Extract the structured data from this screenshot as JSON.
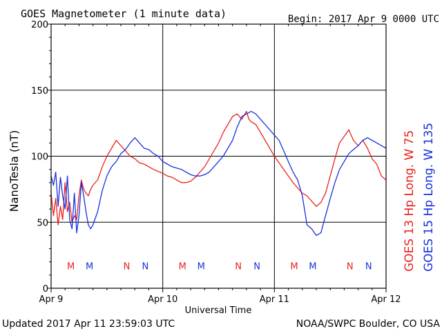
{
  "header": {
    "title": "GOES Magnetometer (1 minute data)",
    "begin": "Begin:  2017 Apr 9 0000 UTC"
  },
  "footer": {
    "updated": "Updated 2017 Apr 11 23:59:03 UTC",
    "source": "NOAA/SWPC Boulder, CO USA"
  },
  "colors": {
    "goes13": "#e8211c",
    "goes15": "#1530e0",
    "axis": "#000000",
    "grid": "#000000"
  },
  "chart_data": {
    "type": "line",
    "ylabel": "NanoTesla (nT)",
    "xlabel": "Universal Time",
    "ylim": [
      0,
      200
    ],
    "xlim": [
      0,
      72
    ],
    "x_unit": "hours since 2017 Apr 9 0000 UTC",
    "yticks": [
      0,
      50,
      100,
      150,
      200
    ],
    "xticks": [
      {
        "x": 0,
        "label": "Apr 9"
      },
      {
        "x": 24,
        "label": "Apr 10"
      },
      {
        "x": 48,
        "label": "Apr 11"
      },
      {
        "x": 72,
        "label": "Apr 12"
      }
    ],
    "grid": true,
    "series": [
      {
        "name": "GOES 13 Hp  Long. W 75",
        "color": "#e8211c",
        "points": [
          [
            0,
            72
          ],
          [
            0.5,
            55
          ],
          [
            1,
            68
          ],
          [
            1.5,
            48
          ],
          [
            2,
            62
          ],
          [
            2.5,
            52
          ],
          [
            3,
            80
          ],
          [
            3.5,
            58
          ],
          [
            4,
            65
          ],
          [
            4.5,
            50
          ],
          [
            5,
            55
          ],
          [
            5.5,
            52
          ],
          [
            6,
            70
          ],
          [
            6.5,
            82
          ],
          [
            7,
            75
          ],
          [
            7.5,
            72
          ],
          [
            8,
            70
          ],
          [
            8.5,
            75
          ],
          [
            9,
            78
          ],
          [
            10,
            82
          ],
          [
            11,
            92
          ],
          [
            12,
            100
          ],
          [
            13,
            106
          ],
          [
            14,
            112
          ],
          [
            15,
            108
          ],
          [
            16,
            104
          ],
          [
            17,
            100
          ],
          [
            18,
            98
          ],
          [
            19,
            95
          ],
          [
            20,
            94
          ],
          [
            21,
            92
          ],
          [
            22,
            90
          ],
          [
            24,
            87
          ],
          [
            25,
            85
          ],
          [
            26,
            84
          ],
          [
            27,
            82
          ],
          [
            28,
            80
          ],
          [
            29,
            80
          ],
          [
            30,
            81
          ],
          [
            31,
            84
          ],
          [
            32,
            88
          ],
          [
            33,
            92
          ],
          [
            34,
            98
          ],
          [
            35,
            104
          ],
          [
            36,
            110
          ],
          [
            37,
            118
          ],
          [
            38,
            124
          ],
          [
            39,
            130
          ],
          [
            40,
            132
          ],
          [
            41,
            128
          ],
          [
            42,
            134
          ],
          [
            42.5,
            128
          ],
          [
            43,
            126
          ],
          [
            44,
            124
          ],
          [
            45,
            118
          ],
          [
            46,
            112
          ],
          [
            47,
            106
          ],
          [
            48,
            100
          ],
          [
            49,
            95
          ],
          [
            50,
            90
          ],
          [
            51,
            85
          ],
          [
            52,
            80
          ],
          [
            53,
            76
          ],
          [
            54,
            72
          ],
          [
            55,
            70
          ],
          [
            56,
            66
          ],
          [
            57,
            62
          ],
          [
            58,
            65
          ],
          [
            59,
            72
          ],
          [
            60,
            85
          ],
          [
            61,
            98
          ],
          [
            62,
            110
          ],
          [
            63,
            115
          ],
          [
            64,
            120
          ],
          [
            65,
            112
          ],
          [
            66,
            108
          ],
          [
            67,
            112
          ],
          [
            68,
            106
          ],
          [
            69,
            98
          ],
          [
            70,
            94
          ],
          [
            71,
            85
          ],
          [
            72,
            82
          ]
        ]
      },
      {
        "name": "GOES 15 Hp  Long. W 135",
        "color": "#1530e0",
        "points": [
          [
            0,
            85
          ],
          [
            0.5,
            78
          ],
          [
            1,
            88
          ],
          [
            1.5,
            62
          ],
          [
            2,
            84
          ],
          [
            2.5,
            70
          ],
          [
            3,
            60
          ],
          [
            3.5,
            85
          ],
          [
            4,
            52
          ],
          [
            4.5,
            45
          ],
          [
            5,
            72
          ],
          [
            5.5,
            42
          ],
          [
            6,
            55
          ],
          [
            6.5,
            80
          ],
          [
            7,
            70
          ],
          [
            7.5,
            58
          ],
          [
            8,
            48
          ],
          [
            8.5,
            45
          ],
          [
            9,
            48
          ],
          [
            10,
            58
          ],
          [
            11,
            74
          ],
          [
            12,
            85
          ],
          [
            13,
            92
          ],
          [
            14,
            96
          ],
          [
            15,
            102
          ],
          [
            16,
            105
          ],
          [
            17,
            110
          ],
          [
            18,
            114
          ],
          [
            19,
            110
          ],
          [
            20,
            106
          ],
          [
            21,
            105
          ],
          [
            22,
            102
          ],
          [
            23,
            100
          ],
          [
            24,
            96
          ],
          [
            25,
            94
          ],
          [
            26,
            92
          ],
          [
            27,
            91
          ],
          [
            28,
            90
          ],
          [
            29,
            88
          ],
          [
            30,
            86
          ],
          [
            31,
            85
          ],
          [
            32,
            85
          ],
          [
            33,
            86
          ],
          [
            34,
            88
          ],
          [
            35,
            92
          ],
          [
            36,
            96
          ],
          [
            37,
            100
          ],
          [
            38,
            106
          ],
          [
            39,
            112
          ],
          [
            40,
            122
          ],
          [
            40.5,
            126
          ],
          [
            41,
            130
          ],
          [
            42,
            132
          ],
          [
            43,
            134
          ],
          [
            44,
            132
          ],
          [
            45,
            128
          ],
          [
            46,
            124
          ],
          [
            47,
            120
          ],
          [
            48,
            116
          ],
          [
            49,
            112
          ],
          [
            50,
            104
          ],
          [
            51,
            96
          ],
          [
            52,
            88
          ],
          [
            53,
            82
          ],
          [
            54,
            70
          ],
          [
            55,
            48
          ],
          [
            56,
            45
          ],
          [
            57,
            40
          ],
          [
            58,
            42
          ],
          [
            59,
            55
          ],
          [
            60,
            68
          ],
          [
            61,
            80
          ],
          [
            62,
            90
          ],
          [
            63,
            96
          ],
          [
            64,
            102
          ],
          [
            65,
            105
          ],
          [
            66,
            108
          ],
          [
            67,
            112
          ],
          [
            68,
            114
          ],
          [
            69,
            112
          ],
          [
            70,
            110
          ],
          [
            71,
            108
          ],
          [
            72,
            106
          ]
        ]
      }
    ],
    "markers": [
      {
        "label": "M",
        "series": 0,
        "x": 4.25
      },
      {
        "label": "M",
        "series": 1,
        "x": 8.25
      },
      {
        "label": "N",
        "series": 0,
        "x": 16.25
      },
      {
        "label": "N",
        "series": 1,
        "x": 20.25
      },
      {
        "label": "M",
        "series": 0,
        "x": 28.25
      },
      {
        "label": "M",
        "series": 1,
        "x": 32.25
      },
      {
        "label": "N",
        "series": 0,
        "x": 40.25
      },
      {
        "label": "N",
        "series": 1,
        "x": 44.25
      },
      {
        "label": "M",
        "series": 0,
        "x": 52.25
      },
      {
        "label": "M",
        "series": 1,
        "x": 56.25
      },
      {
        "label": "N",
        "series": 0,
        "x": 64.25
      },
      {
        "label": "N",
        "series": 1,
        "x": 68.25
      }
    ],
    "marker_level": 17
  }
}
